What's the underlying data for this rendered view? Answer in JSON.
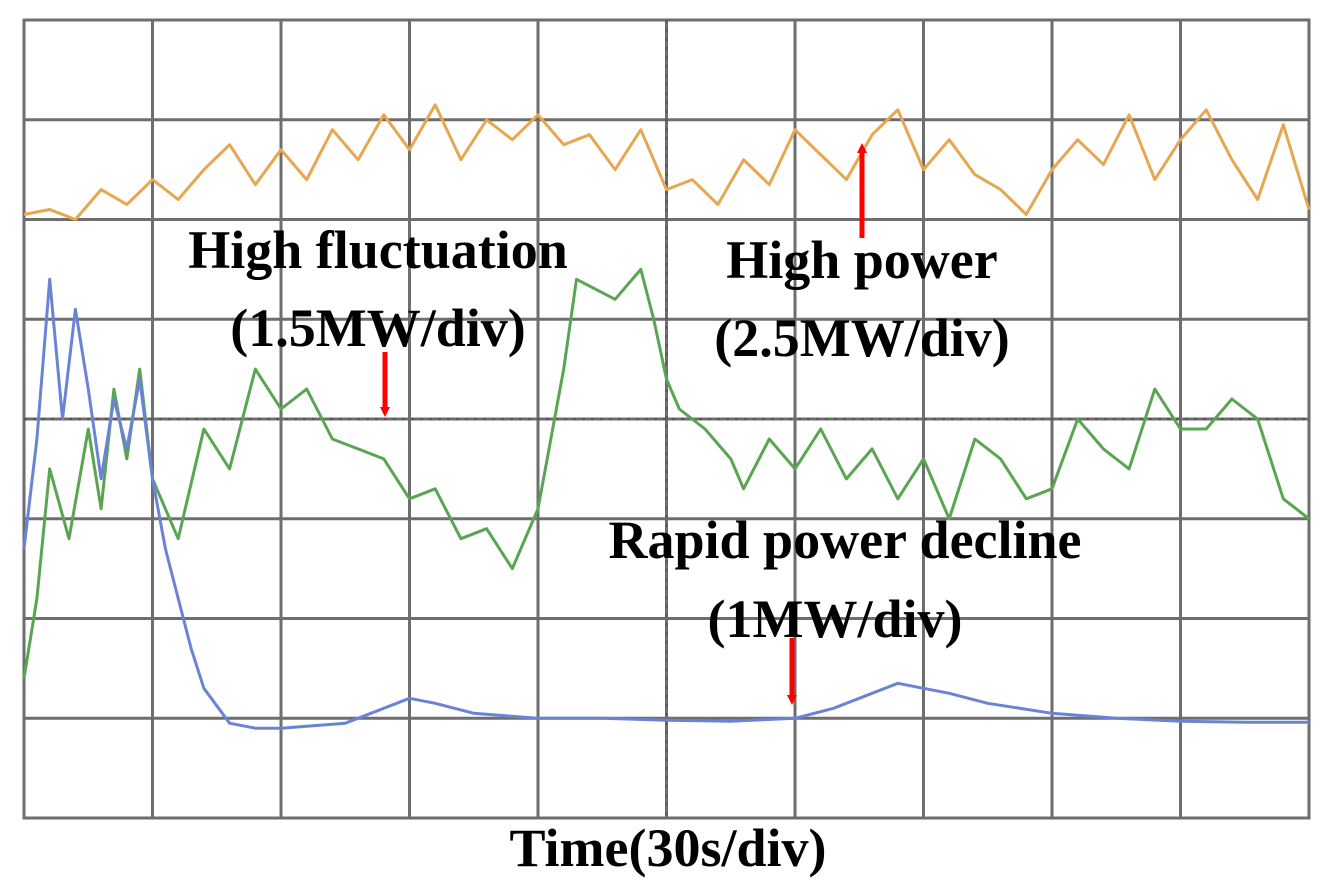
{
  "chart_data": {
    "type": "line",
    "xlabel": "Time(30s/div)",
    "x_divisions": 10,
    "y_divisions": 8,
    "grid": true,
    "series": [
      {
        "color": "#e8a650",
        "x": [
          0,
          0.2,
          0.4,
          0.6,
          0.8,
          1.0,
          1.2,
          1.4,
          1.6,
          1.8,
          2.0,
          2.2,
          2.4,
          2.6,
          2.8,
          3.0,
          3.2,
          3.4,
          3.6,
          3.8,
          4.0,
          4.2,
          4.4,
          4.6,
          4.8,
          5.0,
          5.2,
          5.4,
          5.6,
          5.8,
          6.0,
          6.2,
          6.4,
          6.6,
          6.8,
          7.0,
          7.2,
          7.4,
          7.6,
          7.8,
          8.0,
          8.2,
          8.4,
          8.6,
          8.8,
          9.0,
          9.2,
          9.4,
          9.6,
          9.8,
          10.0
        ],
        "y": [
          6.05,
          6.1,
          6.0,
          6.3,
          6.15,
          6.4,
          6.2,
          6.5,
          6.75,
          6.35,
          6.7,
          6.4,
          6.9,
          6.6,
          7.05,
          6.7,
          7.15,
          6.6,
          7.0,
          6.8,
          7.05,
          6.75,
          6.85,
          6.5,
          6.9,
          6.3,
          6.4,
          6.15,
          6.6,
          6.35,
          6.9,
          6.65,
          6.4,
          6.85,
          7.1,
          6.5,
          6.8,
          6.45,
          6.3,
          6.05,
          6.5,
          6.8,
          6.55,
          7.05,
          6.4,
          6.8,
          7.1,
          6.6,
          6.2,
          6.95,
          6.1
        ]
      },
      {
        "color": "#5aa552",
        "x": [
          0,
          0.1,
          0.2,
          0.35,
          0.5,
          0.6,
          0.7,
          0.8,
          0.9,
          1.0,
          1.2,
          1.4,
          1.6,
          1.8,
          2.0,
          2.2,
          2.4,
          2.6,
          2.8,
          3.0,
          3.2,
          3.4,
          3.6,
          3.8,
          4.0,
          4.2,
          4.3,
          4.6,
          4.8,
          4.9,
          5.0,
          5.1,
          5.3,
          5.5,
          5.6,
          5.8,
          6.0,
          6.2,
          6.4,
          6.6,
          6.8,
          7.0,
          7.2,
          7.4,
          7.6,
          7.8,
          8.0,
          8.2,
          8.4,
          8.6,
          8.8,
          9.0,
          9.2,
          9.4,
          9.6,
          9.8,
          10.0
        ],
        "y": [
          1.4,
          2.2,
          3.5,
          2.8,
          3.9,
          3.1,
          4.3,
          3.6,
          4.5,
          3.4,
          2.8,
          3.9,
          3.5,
          4.5,
          4.1,
          4.3,
          3.8,
          3.7,
          3.6,
          3.2,
          3.3,
          2.8,
          2.9,
          2.5,
          3.1,
          4.5,
          5.4,
          5.2,
          5.5,
          5.0,
          4.4,
          4.1,
          3.9,
          3.6,
          3.3,
          3.8,
          3.5,
          3.9,
          3.4,
          3.7,
          3.2,
          3.6,
          3.0,
          3.8,
          3.6,
          3.2,
          3.3,
          4.0,
          3.7,
          3.5,
          4.3,
          3.9,
          3.9,
          4.2,
          4.0,
          3.2,
          3.0
        ]
      },
      {
        "color": "#6b83d4",
        "x": [
          0,
          0.1,
          0.2,
          0.3,
          0.4,
          0.5,
          0.6,
          0.7,
          0.8,
          0.9,
          1.0,
          1.1,
          1.2,
          1.3,
          1.4,
          1.6,
          1.8,
          2.0,
          2.5,
          3.0,
          3.2,
          3.5,
          4.0,
          4.5,
          5.0,
          5.5,
          6.0,
          6.3,
          6.6,
          6.8,
          7.0,
          7.2,
          7.5,
          8.0,
          8.5,
          9.0,
          9.5,
          10.0
        ],
        "y": [
          2.7,
          3.8,
          5.4,
          4.0,
          5.1,
          4.3,
          3.4,
          4.2,
          3.7,
          4.4,
          3.4,
          2.7,
          2.2,
          1.7,
          1.3,
          0.95,
          0.9,
          0.9,
          0.95,
          1.2,
          1.15,
          1.05,
          1.0,
          1.0,
          0.98,
          0.97,
          1.0,
          1.1,
          1.25,
          1.35,
          1.3,
          1.25,
          1.15,
          1.05,
          1.0,
          0.97,
          0.96,
          0.96
        ]
      }
    ],
    "annotations": [
      {
        "lines": [
          "High fluctuation",
          "(1.5MW/div)"
        ]
      },
      {
        "lines": [
          "High power",
          "(2.5MW/div)"
        ]
      },
      {
        "lines": [
          "Rapid power decline",
          "(1MW/div)"
        ]
      }
    ]
  }
}
